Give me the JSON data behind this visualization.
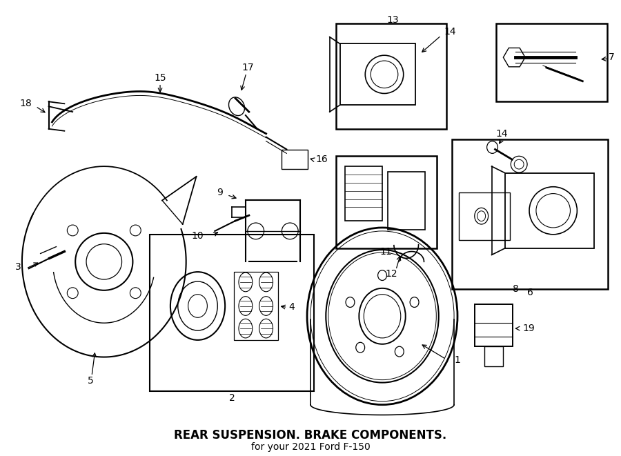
{
  "title": "REAR SUSPENSION. BRAKE COMPONENTS.",
  "subtitle": "for your 2021 Ford F-150",
  "bg_color": "#ffffff",
  "line_color": "#000000",
  "fig_width": 9.0,
  "fig_height": 6.61
}
